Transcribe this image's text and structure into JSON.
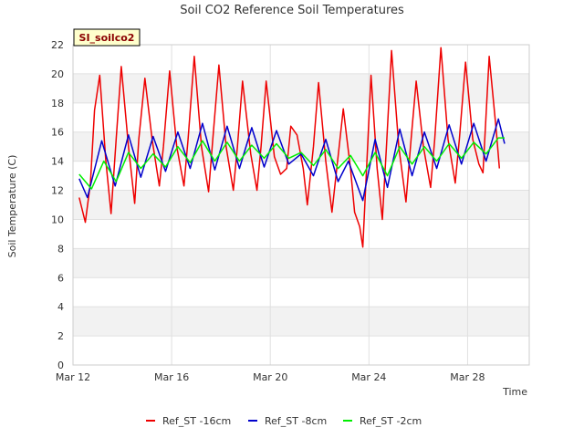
{
  "chart_data": {
    "type": "line",
    "title": "Soil CO2 Reference Soil Temperatures",
    "xlabel": "Time",
    "ylabel": "Soil Temperature (C)",
    "station_label": "SI_soilco2",
    "ylim": [
      0,
      22
    ],
    "yticks": [
      0,
      2,
      4,
      6,
      8,
      10,
      12,
      14,
      16,
      18,
      20,
      22
    ],
    "xlim": [
      "2024-03-12",
      "2024-03-30 12:00"
    ],
    "xticks": [
      {
        "value": "2024-03-12",
        "label": "Mar 12"
      },
      {
        "value": "2024-03-16",
        "label": "Mar 16"
      },
      {
        "value": "2024-03-20",
        "label": "Mar 20"
      },
      {
        "value": "2024-03-24",
        "label": "Mar 24"
      },
      {
        "value": "2024-03-28",
        "label": "Mar 28"
      }
    ],
    "grid": true,
    "legend_position": "bottom",
    "series": [
      {
        "name": "Ref_ST -16cm",
        "color": "#ee0000",
        "points": [
          [
            "2024-03-12 06:00",
            11.5
          ],
          [
            "2024-03-12 12:00",
            9.8
          ],
          [
            "2024-03-12 17:00",
            12.5
          ],
          [
            "2024-03-12 21:00",
            17.5
          ],
          [
            "2024-03-13 02:00",
            19.9
          ],
          [
            "2024-03-13 08:00",
            14.0
          ],
          [
            "2024-03-13 13:00",
            10.4
          ],
          [
            "2024-03-13 18:00",
            15.5
          ],
          [
            "2024-03-13 23:00",
            20.5
          ],
          [
            "2024-03-14 06:00",
            15.0
          ],
          [
            "2024-03-14 12:00",
            11.1
          ],
          [
            "2024-03-14 16:00",
            15.5
          ],
          [
            "2024-03-14 22:00",
            19.7
          ],
          [
            "2024-03-15 05:00",
            15.5
          ],
          [
            "2024-03-15 12:00",
            12.3
          ],
          [
            "2024-03-15 16:00",
            15.0
          ],
          [
            "2024-03-15 22:00",
            20.2
          ],
          [
            "2024-03-16 05:00",
            15.0
          ],
          [
            "2024-03-16 12:00",
            12.3
          ],
          [
            "2024-03-16 16:00",
            15.5
          ],
          [
            "2024-03-16 22:00",
            21.2
          ],
          [
            "2024-03-17 05:00",
            15.0
          ],
          [
            "2024-03-17 12:00",
            11.9
          ],
          [
            "2024-03-17 16:00",
            15.5
          ],
          [
            "2024-03-17 22:00",
            20.6
          ],
          [
            "2024-03-18 05:00",
            15.0
          ],
          [
            "2024-03-18 12:00",
            12.0
          ],
          [
            "2024-03-18 16:00",
            15.0
          ],
          [
            "2024-03-18 21:00",
            19.5
          ],
          [
            "2024-03-19 05:00",
            14.5
          ],
          [
            "2024-03-19 11:00",
            12.0
          ],
          [
            "2024-03-19 15:00",
            15.0
          ],
          [
            "2024-03-19 20:00",
            19.5
          ],
          [
            "2024-03-20 04:00",
            14.3
          ],
          [
            "2024-03-20 10:00",
            13.1
          ],
          [
            "2024-03-20 16:00",
            13.5
          ],
          [
            "2024-03-20 20:00",
            16.4
          ],
          [
            "2024-03-21 02:00",
            15.8
          ],
          [
            "2024-03-21 08:00",
            13.5
          ],
          [
            "2024-03-21 12:00",
            11.0
          ],
          [
            "2024-03-21 18:00",
            15.0
          ],
          [
            "2024-03-21 23:00",
            19.4
          ],
          [
            "2024-03-22 06:00",
            14.0
          ],
          [
            "2024-03-22 12:00",
            10.5
          ],
          [
            "2024-03-22 19:00",
            15.0
          ],
          [
            "2024-03-22 23:00",
            17.6
          ],
          [
            "2024-03-23 06:00",
            13.5
          ],
          [
            "2024-03-23 10:00",
            10.5
          ],
          [
            "2024-03-23 15:00",
            9.5
          ],
          [
            "2024-03-23 18:00",
            8.1
          ],
          [
            "2024-03-23 22:00",
            14.0
          ],
          [
            "2024-03-24 02:00",
            19.9
          ],
          [
            "2024-03-24 08:00",
            13.5
          ],
          [
            "2024-03-24 13:00",
            10.0
          ],
          [
            "2024-03-24 17:00",
            15.0
          ],
          [
            "2024-03-24 22:00",
            21.6
          ],
          [
            "2024-03-25 05:00",
            15.0
          ],
          [
            "2024-03-25 12:00",
            11.2
          ],
          [
            "2024-03-25 17:00",
            15.5
          ],
          [
            "2024-03-25 22:00",
            19.5
          ],
          [
            "2024-03-26 05:00",
            15.0
          ],
          [
            "2024-03-26 12:00",
            12.2
          ],
          [
            "2024-03-26 16:00",
            15.5
          ],
          [
            "2024-03-26 22:00",
            21.8
          ],
          [
            "2024-03-27 05:00",
            15.5
          ],
          [
            "2024-03-27 12:00",
            12.5
          ],
          [
            "2024-03-27 16:00",
            15.5
          ],
          [
            "2024-03-27 22:00",
            20.8
          ],
          [
            "2024-03-28 05:00",
            15.5
          ],
          [
            "2024-03-28 11:00",
            13.8
          ],
          [
            "2024-03-28 15:00",
            13.2
          ],
          [
            "2024-03-28 21:00",
            21.2
          ],
          [
            "2024-03-29 04:00",
            16.0
          ],
          [
            "2024-03-29 07:00",
            13.5
          ]
        ]
      },
      {
        "name": "Ref_ST -8cm",
        "color": "#0000cc",
        "points": [
          [
            "2024-03-12 06:00",
            12.8
          ],
          [
            "2024-03-12 14:00",
            11.5
          ],
          [
            "2024-03-13 04:00",
            15.4
          ],
          [
            "2024-03-13 17:00",
            12.3
          ],
          [
            "2024-03-14 06:00",
            15.8
          ],
          [
            "2024-03-14 18:00",
            12.9
          ],
          [
            "2024-03-15 06:00",
            15.7
          ],
          [
            "2024-03-15 18:00",
            13.3
          ],
          [
            "2024-03-16 06:00",
            16.0
          ],
          [
            "2024-03-16 18:00",
            13.5
          ],
          [
            "2024-03-17 06:00",
            16.6
          ],
          [
            "2024-03-17 18:00",
            13.4
          ],
          [
            "2024-03-18 06:00",
            16.4
          ],
          [
            "2024-03-18 18:00",
            13.5
          ],
          [
            "2024-03-19 06:00",
            16.3
          ],
          [
            "2024-03-19 18:00",
            13.6
          ],
          [
            "2024-03-20 06:00",
            16.1
          ],
          [
            "2024-03-20 18:00",
            13.8
          ],
          [
            "2024-03-21 06:00",
            14.5
          ],
          [
            "2024-03-21 18:00",
            13.0
          ],
          [
            "2024-03-22 06:00",
            15.5
          ],
          [
            "2024-03-22 18:00",
            12.6
          ],
          [
            "2024-03-23 04:00",
            14.0
          ],
          [
            "2024-03-23 18:00",
            11.3
          ],
          [
            "2024-03-24 06:00",
            15.5
          ],
          [
            "2024-03-24 18:00",
            12.2
          ],
          [
            "2024-03-25 06:00",
            16.2
          ],
          [
            "2024-03-25 18:00",
            13.0
          ],
          [
            "2024-03-26 06:00",
            16.0
          ],
          [
            "2024-03-26 18:00",
            13.5
          ],
          [
            "2024-03-27 06:00",
            16.5
          ],
          [
            "2024-03-27 18:00",
            13.8
          ],
          [
            "2024-03-28 06:00",
            16.6
          ],
          [
            "2024-03-28 18:00",
            14.0
          ],
          [
            "2024-03-29 06:00",
            16.9
          ],
          [
            "2024-03-29 12:00",
            15.2
          ]
        ]
      },
      {
        "name": "Ref_ST -2cm",
        "color": "#00ee00",
        "points": [
          [
            "2024-03-12 06:00",
            13.1
          ],
          [
            "2024-03-12 18:00",
            12.1
          ],
          [
            "2024-03-13 06:00",
            14.0
          ],
          [
            "2024-03-13 18:00",
            12.6
          ],
          [
            "2024-03-14 06:00",
            14.6
          ],
          [
            "2024-03-14 18:00",
            13.5
          ],
          [
            "2024-03-15 06:00",
            14.5
          ],
          [
            "2024-03-15 18:00",
            13.6
          ],
          [
            "2024-03-16 06:00",
            15.0
          ],
          [
            "2024-03-16 18:00",
            13.9
          ],
          [
            "2024-03-17 06:00",
            15.4
          ],
          [
            "2024-03-17 18:00",
            14.0
          ],
          [
            "2024-03-18 06:00",
            15.3
          ],
          [
            "2024-03-18 18:00",
            14.0
          ],
          [
            "2024-03-19 06:00",
            15.1
          ],
          [
            "2024-03-19 18:00",
            14.2
          ],
          [
            "2024-03-20 06:00",
            15.2
          ],
          [
            "2024-03-20 18:00",
            14.2
          ],
          [
            "2024-03-21 06:00",
            14.6
          ],
          [
            "2024-03-21 18:00",
            13.7
          ],
          [
            "2024-03-22 06:00",
            14.8
          ],
          [
            "2024-03-22 18:00",
            13.5
          ],
          [
            "2024-03-23 06:00",
            14.4
          ],
          [
            "2024-03-23 18:00",
            13.0
          ],
          [
            "2024-03-24 06:00",
            14.6
          ],
          [
            "2024-03-24 18:00",
            13.0
          ],
          [
            "2024-03-25 06:00",
            15.0
          ],
          [
            "2024-03-25 18:00",
            13.8
          ],
          [
            "2024-03-26 06:00",
            15.0
          ],
          [
            "2024-03-26 18:00",
            14.0
          ],
          [
            "2024-03-27 06:00",
            15.2
          ],
          [
            "2024-03-27 18:00",
            14.2
          ],
          [
            "2024-03-28 06:00",
            15.3
          ],
          [
            "2024-03-28 18:00",
            14.5
          ],
          [
            "2024-03-29 06:00",
            15.6
          ],
          [
            "2024-03-29 12:00",
            15.6
          ]
        ]
      }
    ]
  }
}
